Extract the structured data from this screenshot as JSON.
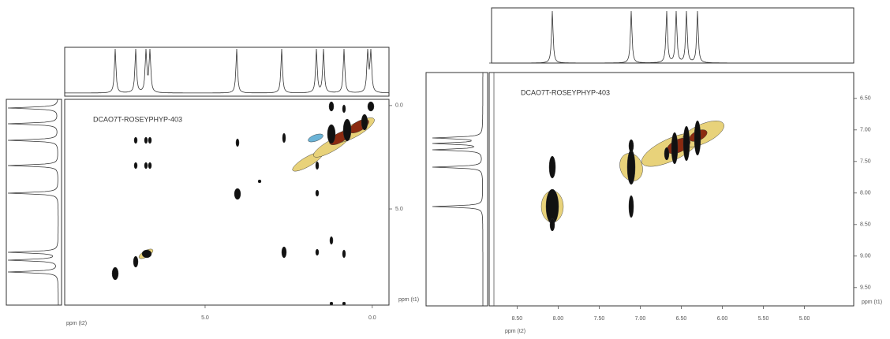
{
  "chart_data": [
    {
      "type": "contour",
      "title": "DCAO7T-ROSEYPHYP-403",
      "xlabel": "ppm (t2)",
      "ylabel": "ppm (t1)",
      "xlim": [
        9.2,
        -0.5
      ],
      "ylim": [
        -0.3,
        9.65
      ],
      "xticks": [
        {
          "value": 5,
          "label": "5.0"
        },
        {
          "value": 0,
          "label": "0.0"
        }
      ],
      "yticks": [
        {
          "value": 0,
          "label": "0.0"
        },
        {
          "value": 5,
          "label": "5.0"
        }
      ]
    },
    {
      "type": "contour",
      "title": "DCAO7T-ROSEYPHYP-403",
      "xlabel": "ppm (t2)",
      "ylabel": "ppm (t1)",
      "xlim": [
        8.84,
        4.4
      ],
      "ylim": [
        6.09,
        9.79
      ],
      "xticks": [
        {
          "value": 8.5,
          "label": "8.50"
        },
        {
          "value": 8,
          "label": "8.00"
        },
        {
          "value": 7.5,
          "label": "7.50"
        },
        {
          "value": 7,
          "label": "7.00"
        },
        {
          "value": 6.5,
          "label": "6.50"
        },
        {
          "value": 6,
          "label": "6.00"
        },
        {
          "value": 5.5,
          "label": "5.50"
        },
        {
          "value": 5,
          "label": "5.00"
        }
      ],
      "yticks": [
        {
          "value": 6.5,
          "label": "6.50"
        },
        {
          "value": 7,
          "label": "7.00"
        },
        {
          "value": 7.5,
          "label": "7.50"
        },
        {
          "value": 8,
          "label": "8.00"
        },
        {
          "value": 8.5,
          "label": "8.50"
        },
        {
          "value": 9,
          "label": "9.00"
        },
        {
          "value": 9.5,
          "label": "9.50"
        }
      ]
    }
  ]
}
